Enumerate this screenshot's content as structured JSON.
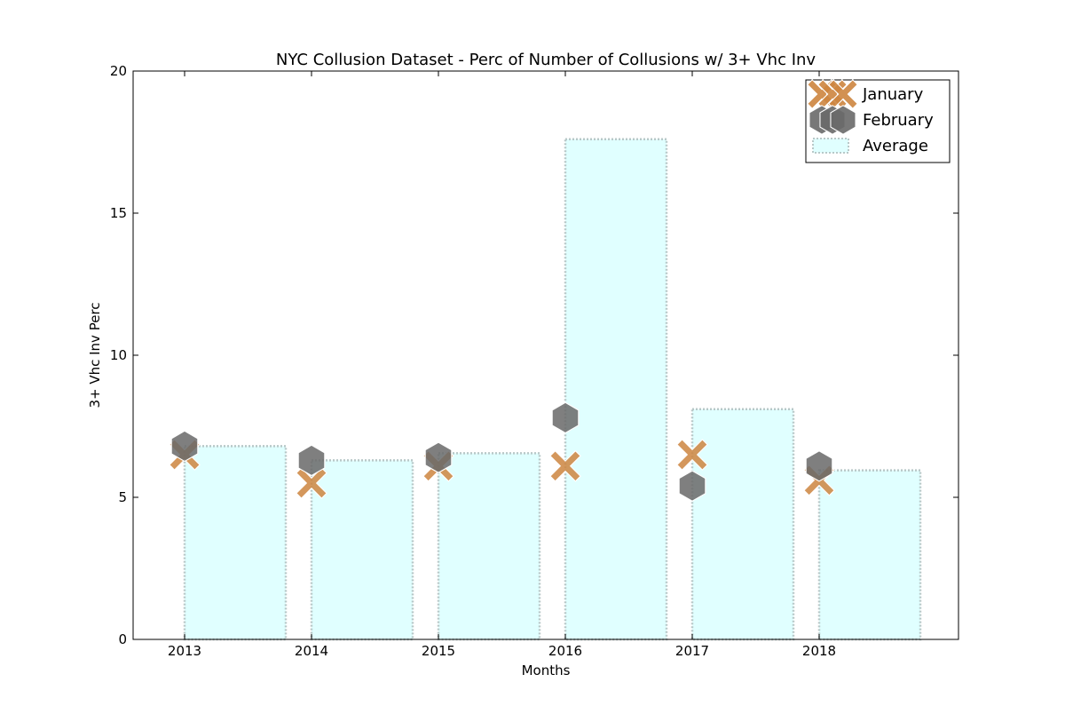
{
  "chart_data": {
    "type": "bar",
    "title": "NYC Collusion Dataset - Perc of Number of Collusions w/ 3+ Vhc Inv",
    "xlabel": "Months",
    "ylabel": "3+ Vhc Inv Perc",
    "categories": [
      "2013",
      "2014",
      "2015",
      "2016",
      "2017",
      "2018"
    ],
    "ylim": [
      0,
      20
    ],
    "yticks": [
      "0",
      "5",
      "10",
      "15",
      "20"
    ],
    "grid": false,
    "legend_position": "top-right",
    "series": [
      {
        "name": "January",
        "kind": "scatter",
        "marker": "x",
        "color": "#cd853f",
        "values": [
          6.5,
          5.5,
          6.1,
          6.1,
          6.5,
          5.6
        ]
      },
      {
        "name": "February",
        "kind": "scatter",
        "marker": "hexagon",
        "color": "#696969",
        "values": [
          6.8,
          6.3,
          6.4,
          7.8,
          5.4,
          6.1
        ]
      },
      {
        "name": "Average",
        "kind": "bar",
        "color": "#e0ffff",
        "values": [
          6.8,
          6.3,
          6.55,
          17.6,
          8.1,
          5.95
        ]
      }
    ]
  }
}
